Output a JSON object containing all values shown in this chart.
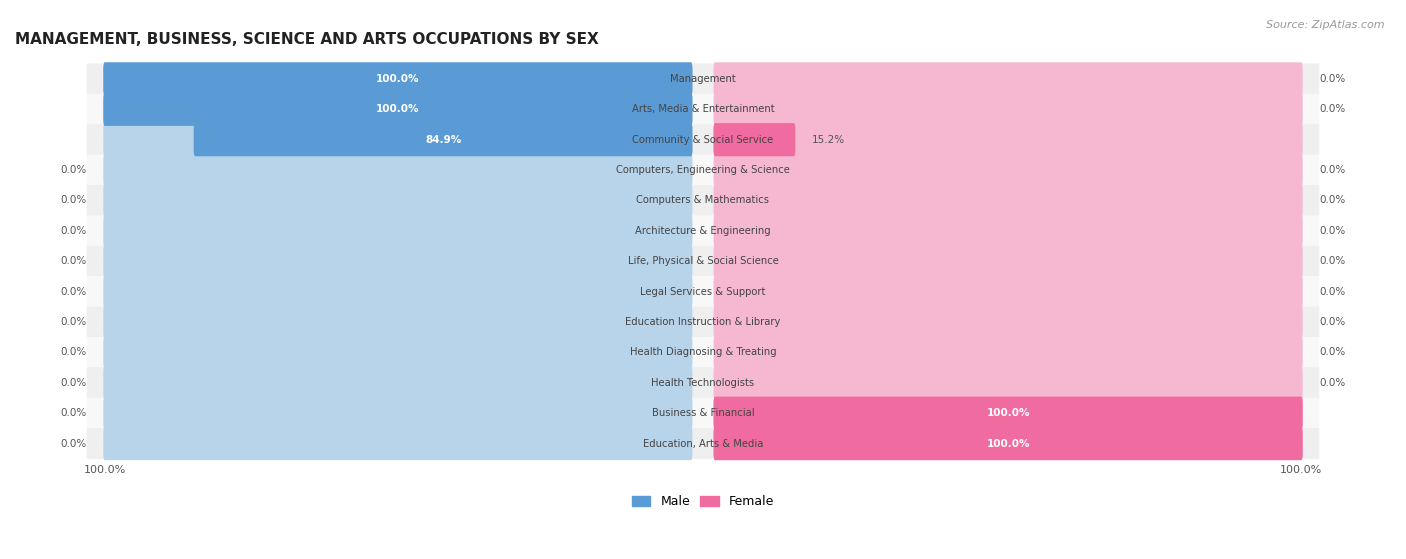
{
  "title": "MANAGEMENT, BUSINESS, SCIENCE AND ARTS OCCUPATIONS BY SEX",
  "source": "Source: ZipAtlas.com",
  "categories": [
    "Management",
    "Arts, Media & Entertainment",
    "Community & Social Service",
    "Computers, Engineering & Science",
    "Computers & Mathematics",
    "Architecture & Engineering",
    "Life, Physical & Social Science",
    "Legal Services & Support",
    "Education Instruction & Library",
    "Health Diagnosing & Treating",
    "Health Technologists",
    "Business & Financial",
    "Education, Arts & Media"
  ],
  "male_values": [
    100.0,
    100.0,
    84.9,
    0.0,
    0.0,
    0.0,
    0.0,
    0.0,
    0.0,
    0.0,
    0.0,
    0.0,
    0.0
  ],
  "female_values": [
    0.0,
    0.0,
    15.2,
    0.0,
    0.0,
    0.0,
    0.0,
    0.0,
    0.0,
    0.0,
    0.0,
    100.0,
    100.0
  ],
  "male_color": "#5b9bd5",
  "female_color": "#f06ba0",
  "male_color_light": "#b8d4ea",
  "female_color_light": "#f5b8d0",
  "legend_male": "Male",
  "legend_female": "Female"
}
